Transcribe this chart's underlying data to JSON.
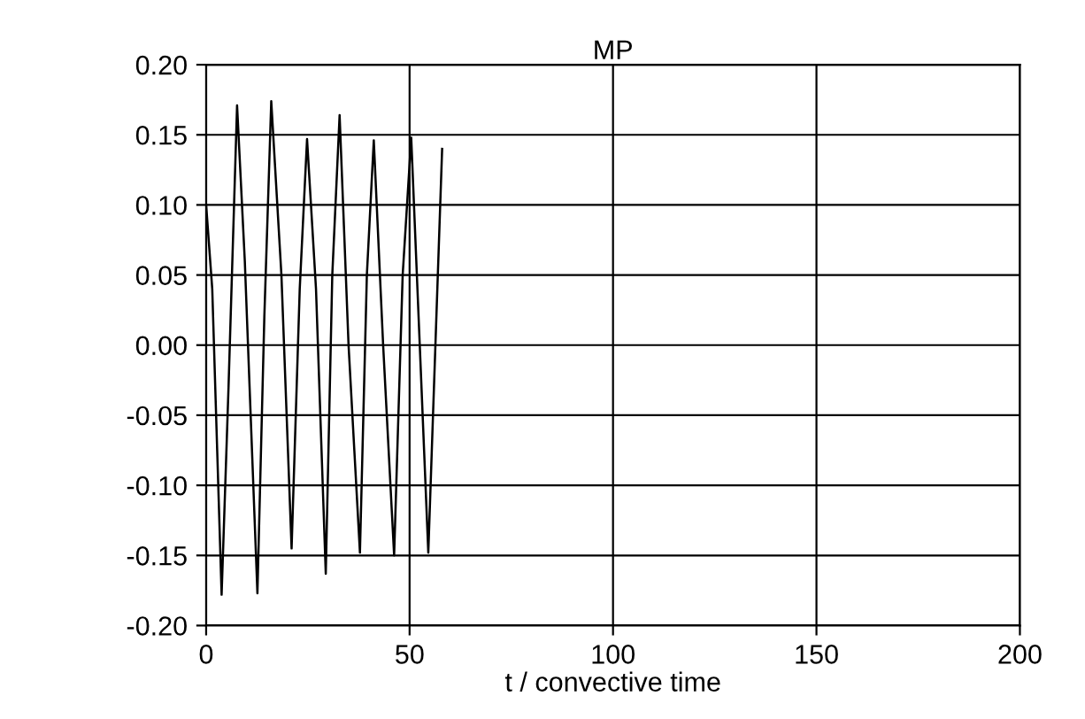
{
  "chart_data": {
    "type": "line",
    "title": "MP",
    "xlabel": "t / convective time",
    "series": [
      {
        "color": "#000000",
        "x": [
          0,
          1.5,
          3.8,
          5.5,
          7.6,
          9.5,
          12.6,
          14.3,
          16,
          18.5,
          21,
          23,
          24.8,
          27,
          29.4,
          31,
          32.8,
          35,
          37.8,
          39.5,
          41.2,
          43.5,
          46.2,
          48.3,
          50.4,
          52.5,
          54.6,
          58
        ],
        "values": [
          0.1,
          0.04,
          -0.178,
          -0.03,
          0.171,
          0.06,
          -0.177,
          0.02,
          0.174,
          0.05,
          -0.145,
          0.04,
          0.147,
          0.04,
          -0.163,
          0.05,
          0.164,
          0.0,
          -0.148,
          0.05,
          0.146,
          0.0,
          -0.15,
          0.05,
          0.148,
          0.0,
          -0.148,
          0.14
        ]
      }
    ],
    "xlim": [
      0,
      200
    ],
    "xticks": [
      0,
      50,
      100,
      150,
      200
    ],
    "ylim": [
      -0.2,
      0.2
    ],
    "yticks": [
      {
        "value": -0.2,
        "label": "-0.20"
      },
      {
        "value": -0.15,
        "label": "-0.15"
      },
      {
        "value": -0.1,
        "label": "-0.10"
      },
      {
        "value": -0.05,
        "label": "-0.05"
      },
      {
        "value": 0,
        "label": "0.00"
      },
      {
        "value": 0.05,
        "label": "0.05"
      },
      {
        "value": 0.1,
        "label": "0.10"
      },
      {
        "value": 0.15,
        "label": "0.15"
      },
      {
        "value": 0.2,
        "label": "0.20"
      }
    ],
    "grid": true,
    "legend": false
  }
}
